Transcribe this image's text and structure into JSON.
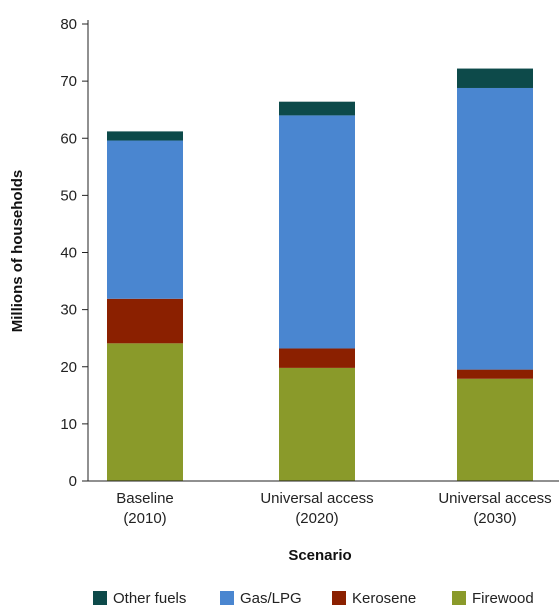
{
  "chart_data": {
    "type": "bar",
    "stacked": true,
    "categories": [
      [
        "Baseline",
        "(2010)"
      ],
      [
        "Universal access",
        "(2020)"
      ],
      [
        "Universal access",
        "(2030)"
      ]
    ],
    "series": [
      {
        "name": "Firewood",
        "color": "#8a9a2a",
        "values": [
          24.1,
          19.8,
          17.9
        ]
      },
      {
        "name": "Kerosene",
        "color": "#8b2000",
        "values": [
          7.8,
          3.4,
          1.6
        ]
      },
      {
        "name": "Gas/LPG",
        "color": "#4a86d0",
        "values": [
          27.7,
          40.8,
          49.3
        ]
      },
      {
        "name": "Other fuels",
        "color": "#0d4a4a",
        "values": [
          1.6,
          2.4,
          3.4
        ]
      }
    ],
    "legend_order": [
      "Other fuels",
      "Gas/LPG",
      "Kerosene",
      "Firewood"
    ],
    "xlabel": "Scenario",
    "ylabel": "Millions of households",
    "ylim": [
      0,
      80
    ],
    "yticks": [
      0,
      10,
      20,
      30,
      40,
      50,
      60,
      70,
      80
    ],
    "grid": false,
    "legend_position": "bottom"
  }
}
